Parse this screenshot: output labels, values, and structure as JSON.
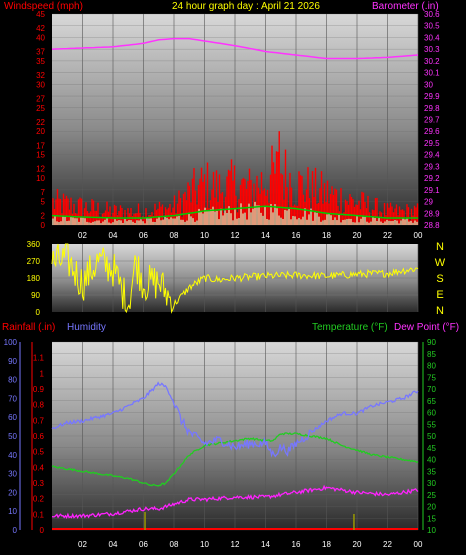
{
  "header": {
    "left_title": "Windspeed (mph)",
    "center_title": "24 hour graph day : April 21 2026",
    "right_title": "Barometer (.in)"
  },
  "colors": {
    "wind": "#ff0000",
    "wind_avg": "#00cc00",
    "wind_light": "#ccffcc",
    "baro": "#ff33ff",
    "dir": "#ffff00",
    "humidity": "#7777ff",
    "temperature": "#22cc22",
    "dewpoint": "#ff22ff",
    "rain": "#ff0000",
    "rain_tick": "#999900"
  },
  "chart_data": [
    {
      "type": "area",
      "title": "24 hour graph day : April 21 2026",
      "ylabel_left": "Windspeed (mph)",
      "ylabel_right": "Barometer (.in)",
      "x_ticks": [
        "02",
        "04",
        "06",
        "08",
        "10",
        "12",
        "14",
        "16",
        "18",
        "20",
        "22",
        "00"
      ],
      "y_left_ticks": [
        "0",
        "2",
        "5",
        "7",
        "10",
        "12",
        "15",
        "17",
        "20",
        "22",
        "25",
        "27",
        "30",
        "32",
        "35",
        "37",
        "40",
        "42",
        "45"
      ],
      "y_right_ticks": [
        "28.8",
        "28.9",
        "29",
        "29.1",
        "29.2",
        "29.3",
        "29.4",
        "29.5",
        "29.6",
        "29.7",
        "29.8",
        "29.9",
        "30",
        "30.1",
        "30.2",
        "30.3",
        "30.4",
        "30.5",
        "30.6"
      ],
      "ylim_left": [
        0,
        45
      ],
      "ylim_right": [
        28.8,
        30.6
      ],
      "series": [
        {
          "name": "Barometer",
          "axis": "right",
          "x": [
            0,
            2,
            4,
            6,
            7,
            8,
            9,
            10,
            12,
            14,
            16,
            18,
            20,
            22,
            24
          ],
          "y": [
            30.3,
            30.31,
            30.32,
            30.35,
            30.38,
            30.39,
            30.39,
            30.37,
            30.33,
            30.28,
            30.25,
            30.22,
            30.22,
            30.23,
            30.25
          ]
        },
        {
          "name": "Windspeed gust",
          "axis": "left",
          "x": [
            0,
            2,
            4,
            6,
            8,
            9,
            10,
            11,
            12,
            13,
            14,
            15,
            16,
            17,
            18,
            19,
            20,
            21,
            22,
            23,
            24
          ],
          "y": [
            5,
            4,
            3,
            3,
            4,
            7,
            9,
            8,
            9,
            8,
            10,
            12,
            9,
            8,
            7,
            6,
            5,
            4,
            3,
            3,
            3
          ]
        },
        {
          "name": "Windspeed average",
          "axis": "left",
          "x": [
            0,
            2,
            4,
            6,
            8,
            10,
            12,
            14,
            16,
            18,
            20,
            22,
            24
          ],
          "y": [
            1.5,
            1.2,
            1,
            1,
            1.5,
            2.5,
            3,
            3.5,
            3,
            2,
            1.5,
            1,
            1
          ]
        }
      ]
    },
    {
      "type": "line",
      "ylabel_right": [
        "N",
        "W",
        "S",
        "E",
        "N"
      ],
      "y_left_ticks": [
        "360",
        "270",
        "180",
        "90",
        "0"
      ],
      "ylim": [
        0,
        360
      ],
      "series": [
        {
          "name": "Wind direction",
          "x": [
            0,
            1,
            2,
            3,
            4,
            5,
            5.5,
            6,
            7,
            8,
            9,
            10,
            11,
            12,
            14,
            16,
            18,
            20,
            22,
            23,
            24
          ],
          "y": [
            260,
            280,
            150,
            270,
            230,
            40,
            270,
            150,
            160,
            40,
            130,
            180,
            170,
            180,
            190,
            195,
            190,
            200,
            205,
            220,
            230
          ]
        }
      ]
    },
    {
      "type": "line",
      "title_left": "Rainfall (.in)",
      "title_humidity": "Humidity",
      "title_temp": "Temperature (°F)",
      "title_dew": "Dew Point (°F)",
      "y_rain_ticks": [
        "0",
        "0.1",
        "0.2",
        "0.3",
        "0.4",
        "0.5",
        "0.6",
        "0.7",
        "0.8",
        "0.9",
        "1",
        "1.1"
      ],
      "y_humidity_ticks": [
        "0",
        "10",
        "20",
        "30",
        "40",
        "50",
        "60",
        "70",
        "80",
        "90",
        "100"
      ],
      "y_temp_ticks": [
        "10",
        "15",
        "20",
        "25",
        "30",
        "35",
        "40",
        "45",
        "50",
        "55",
        "60",
        "65",
        "70",
        "75",
        "80",
        "85",
        "90"
      ],
      "ylim_temp": [
        10,
        90
      ],
      "ylim_humidity": [
        0,
        100
      ],
      "series": [
        {
          "name": "Humidity",
          "axis": "humidity",
          "x": [
            0,
            1,
            2,
            4,
            5,
            6,
            6.5,
            7,
            7.5,
            8,
            8.5,
            9,
            10,
            11,
            12,
            13,
            14,
            14.5,
            15,
            15.5,
            16,
            17,
            18,
            19,
            20,
            21,
            22,
            23,
            24
          ],
          "y": [
            54,
            57,
            58,
            62,
            66,
            70,
            74,
            78,
            76,
            68,
            58,
            52,
            46,
            48,
            44,
            46,
            46,
            40,
            44,
            42,
            46,
            52,
            58,
            62,
            62,
            66,
            68,
            70,
            74
          ]
        },
        {
          "name": "Temperature",
          "axis": "temp",
          "x": [
            0,
            1,
            2,
            3,
            4,
            5,
            6,
            6.5,
            7,
            7.5,
            8,
            9,
            10,
            11,
            12,
            13,
            14,
            14.5,
            15,
            16,
            17,
            18,
            19,
            20,
            21,
            22,
            23,
            24
          ],
          "y": [
            37,
            36,
            35,
            34,
            33,
            32,
            30,
            29,
            29,
            30,
            34,
            42,
            46,
            47,
            48,
            49,
            48,
            48,
            51,
            51,
            50,
            49,
            46,
            44,
            42,
            41,
            40,
            39
          ]
        },
        {
          "name": "Dew Point",
          "axis": "temp",
          "x": [
            0,
            2,
            4,
            6,
            7,
            8,
            9,
            10,
            12,
            14,
            16,
            18,
            20,
            22,
            24
          ],
          "y": [
            16,
            16,
            17,
            19,
            19,
            21,
            23,
            23,
            24,
            24,
            26,
            28,
            26,
            25,
            27
          ]
        },
        {
          "name": "Rainfall",
          "axis": "rain",
          "x": [
            0,
            24
          ],
          "y": [
            0,
            0
          ]
        }
      ]
    }
  ]
}
